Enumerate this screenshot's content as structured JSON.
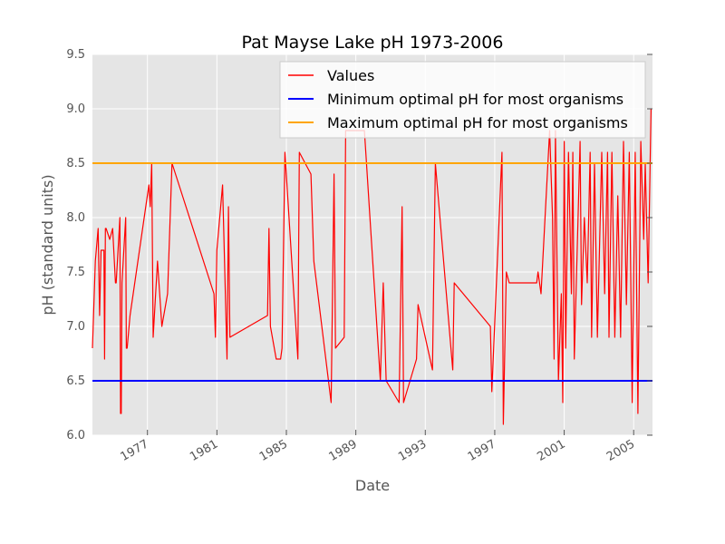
{
  "chart_data": {
    "type": "line",
    "title": "Pat Mayse Lake pH 1973-2006",
    "xlabel": "Date",
    "ylabel": "pH (standard units)",
    "xlim": [
      "1973-11-01",
      "2006-02-01"
    ],
    "ylim": [
      6.0,
      9.5
    ],
    "grid": true,
    "background": "#e5e5e5",
    "legend_position": "top-right",
    "x_ticks": [
      "1977",
      "1981",
      "1985",
      "1989",
      "1993",
      "1997",
      "2001",
      "2005"
    ],
    "y_ticks": [
      "6.0",
      "6.5",
      "7.0",
      "7.5",
      "8.0",
      "8.5",
      "9.0",
      "9.5"
    ],
    "series": [
      {
        "name": "Values",
        "color": "#ff0000",
        "x": [
          "1973-11-01",
          "1974-01-01",
          "1974-03-01",
          "1974-04-01",
          "1974-05-01",
          "1974-07-01",
          "1974-07-15",
          "1974-08-01",
          "1974-08-15",
          "1974-11-01",
          "1975-01-01",
          "1975-03-01",
          "1975-03-15",
          "1975-06-01",
          "1975-06-15",
          "1975-07-01",
          "1975-07-15",
          "1975-10-01",
          "1975-10-15",
          "1975-11-01",
          "1976-01-01",
          "1977-02-01",
          "1977-03-01",
          "1977-04-01",
          "1977-05-01",
          "1977-08-01",
          "1977-11-01",
          "1978-03-01",
          "1978-06-01",
          "1980-11-01",
          "1980-12-01",
          "1981-01-01",
          "1981-05-01",
          "1981-08-01",
          "1981-09-01",
          "1981-10-01",
          "1983-12-01",
          "1984-01-01",
          "1984-02-01",
          "1984-06-01",
          "1984-09-01",
          "1984-10-01",
          "1984-12-01",
          "1985-09-01",
          "1985-10-01",
          "1986-06-01",
          "1986-08-01",
          "1987-08-01",
          "1987-10-01",
          "1987-11-01",
          "1988-05-01",
          "1988-06-01",
          "1989-07-01",
          "1990-06-01",
          "1990-08-01",
          "1990-10-01",
          "1991-07-01",
          "1991-09-01",
          "1991-10-01",
          "1992-07-01",
          "1992-08-01",
          "1993-06-01",
          "1993-08-01",
          "1994-08-01",
          "1994-09-01",
          "1996-10-01",
          "1996-11-01",
          "1997-06-01",
          "1997-07-01",
          "1997-09-01",
          "1997-11-01",
          "1999-06-01",
          "1999-07-01",
          "1999-09-01",
          "2000-03-01",
          "2000-05-01",
          "2000-06-01",
          "2000-07-01",
          "2000-09-01",
          "2000-11-01",
          "2000-12-01",
          "2001-01-01",
          "2001-02-01",
          "2001-04-01",
          "2001-06-01",
          "2001-07-01",
          "2001-08-01",
          "2001-10-01",
          "2001-12-01",
          "2002-01-01",
          "2002-03-01",
          "2002-05-01",
          "2002-07-01",
          "2002-08-01",
          "2002-10-01",
          "2002-12-01",
          "2003-03-01",
          "2003-05-01",
          "2003-07-01",
          "2003-08-01",
          "2003-10-01",
          "2003-12-01",
          "2004-02-01",
          "2004-04-01",
          "2004-06-01",
          "2004-08-01",
          "2004-10-01",
          "2004-12-01",
          "2005-02-01",
          "2005-04-01",
          "2005-06-01",
          "2005-08-01",
          "2005-09-01",
          "2005-11-01",
          "2006-01-01"
        ],
        "values": [
          6.8,
          7.6,
          7.9,
          7.1,
          7.7,
          7.7,
          6.7,
          7.9,
          7.9,
          7.8,
          7.9,
          7.4,
          7.4,
          8.0,
          6.2,
          6.2,
          7.4,
          8.0,
          6.8,
          6.8,
          7.1,
          8.3,
          8.1,
          8.5,
          6.9,
          7.6,
          7.0,
          7.3,
          8.5,
          7.3,
          6.9,
          7.7,
          8.3,
          6.7,
          8.1,
          6.9,
          7.1,
          7.9,
          7.0,
          6.7,
          6.7,
          6.8,
          8.6,
          6.7,
          8.6,
          8.4,
          7.6,
          6.3,
          8.4,
          6.8,
          6.9,
          8.8,
          8.8,
          6.5,
          7.4,
          6.5,
          6.3,
          8.1,
          6.3,
          6.7,
          7.2,
          6.6,
          8.5,
          6.6,
          7.4,
          7.0,
          6.4,
          8.6,
          6.1,
          7.5,
          7.4,
          7.4,
          7.5,
          7.3,
          8.8,
          8.0,
          6.7,
          8.8,
          6.5,
          7.3,
          6.3,
          8.7,
          6.8,
          8.6,
          7.3,
          8.6,
          6.7,
          7.7,
          8.7,
          7.2,
          8.0,
          7.4,
          8.6,
          6.9,
          8.5,
          6.9,
          8.6,
          7.3,
          8.6,
          6.9,
          8.6,
          6.9,
          8.2,
          6.9,
          8.7,
          7.2,
          8.6,
          6.3,
          8.6,
          6.2,
          8.7,
          7.8,
          8.5,
          7.4,
          9.0
        ]
      },
      {
        "name": "Minimum optimal pH for most organisms",
        "color": "#0000ff",
        "constant": 6.5
      },
      {
        "name": "Maximum optimal pH for most organisms",
        "color": "#ffa500",
        "constant": 8.5
      }
    ]
  }
}
